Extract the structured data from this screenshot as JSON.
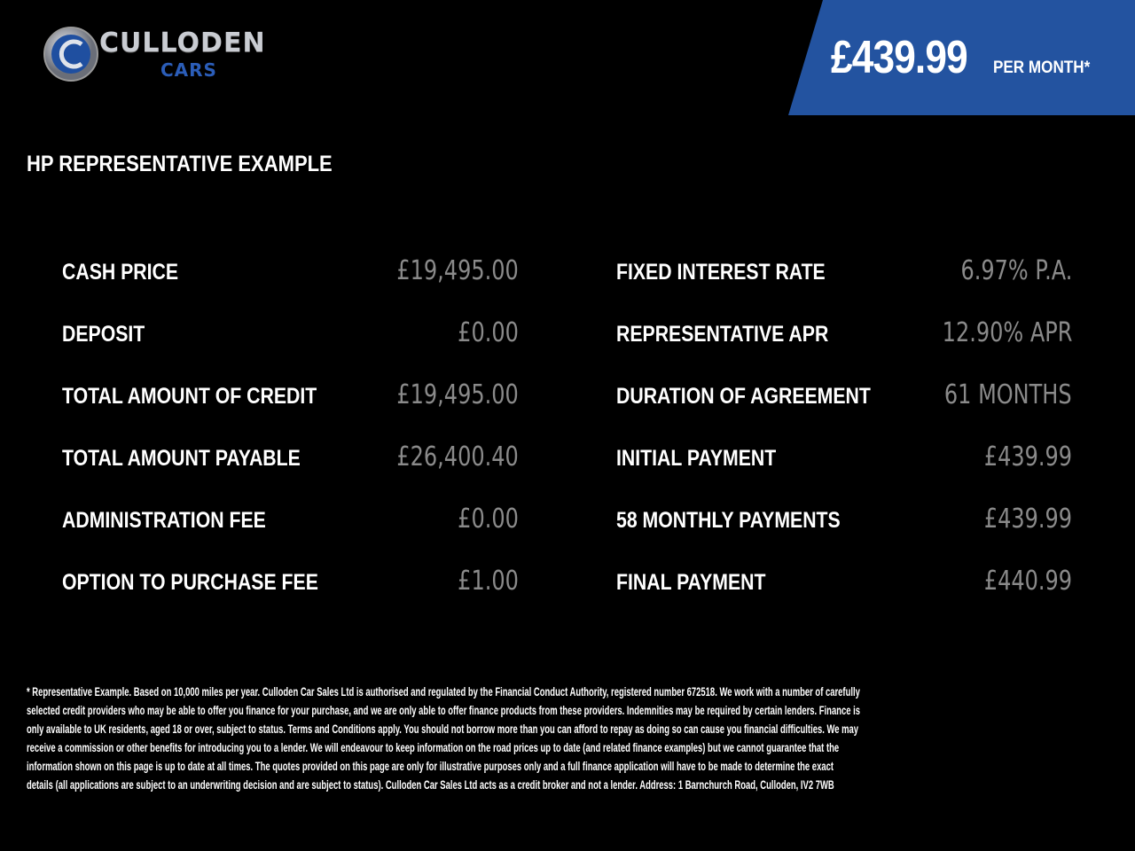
{
  "brand": {
    "name_line1": "CULLODEN",
    "name_line2": "CARS",
    "accent": "#2353a0"
  },
  "banner": {
    "price": "£439.99",
    "suffix": "PER MONTH*"
  },
  "heading": "HP REPRESENTATIVE EXAMPLE",
  "left": [
    {
      "label": "CASH PRICE",
      "value": "£19,495.00"
    },
    {
      "label": "DEPOSIT",
      "value": "£0.00"
    },
    {
      "label": "TOTAL AMOUNT OF CREDIT",
      "value": "£19,495.00"
    },
    {
      "label": "TOTAL AMOUNT PAYABLE",
      "value": "£26,400.40"
    },
    {
      "label": "ADMINISTRATION FEE",
      "value": "£0.00"
    },
    {
      "label": "OPTION TO PURCHASE FEE",
      "value": "£1.00"
    }
  ],
  "right": [
    {
      "label": "FIXED INTEREST RATE",
      "value": "6.97% P.A."
    },
    {
      "label": "REPRESENTATIVE APR",
      "value": "12.90% APR"
    },
    {
      "label": "DURATION OF AGREEMENT",
      "value": "61 MONTHS"
    },
    {
      "label": "INITIAL PAYMENT",
      "value": "£439.99"
    },
    {
      "label": "58 MONTHLY PAYMENTS",
      "value": "£439.99"
    },
    {
      "label": "FINAL PAYMENT",
      "value": "£440.99"
    }
  ],
  "disclaimer": [
    "* Representative Example. Based on 10,000 miles per year. Culloden Car Sales Ltd is authorised and regulated by the Financial Conduct Authority, registered number 672518. We work with a number of carefully",
    "selected credit providers who may be able to offer you finance for your purchase, and we are only able to offer finance products from these providers. Indemnities may be required by certain lenders. Finance is",
    "only available to UK residents, aged 18 or over, subject to status. Terms and Conditions apply. You should not borrow more than you can afford to repay as doing so can cause you financial difficulties. We may",
    "receive a commission or other benefits for introducing you to a lender. We will endeavour to keep information on the road prices up to date (and related finance examples) but we cannot guarantee that the",
    "information shown on this page is up to date at all times. The quotes provided on this page are only for illustrative purposes only and a full finance application will have to be made to determine the exact",
    "details (all applications are subject to an underwriting decision and are subject to status). Culloden Car Sales Ltd acts as a credit broker and not a lender. Address: 1 Barnchurch Road, Culloden, IV2 7WB"
  ]
}
